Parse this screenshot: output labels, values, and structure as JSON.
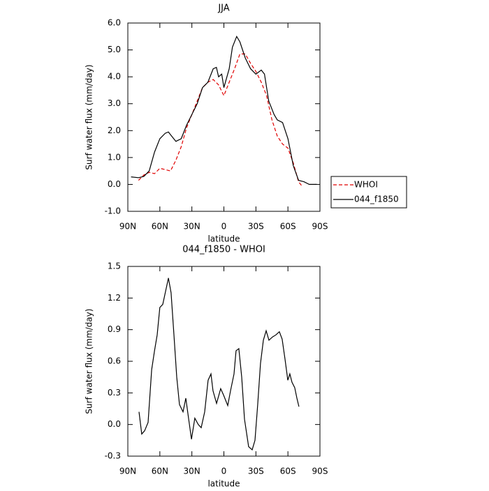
{
  "chart_data": [
    {
      "type": "line",
      "title": "JJA",
      "xlabel": "latitude",
      "ylabel": "Surf water flux (mm/day)",
      "xlim": [
        90,
        -90
      ],
      "xticks": [
        {
          "value": 90,
          "label": "90N"
        },
        {
          "value": 60,
          "label": "60N"
        },
        {
          "value": 30,
          "label": "30N"
        },
        0,
        {
          "value": -30,
          "label": "30S"
        },
        {
          "value": -60,
          "label": "60S"
        },
        {
          "value": -90,
          "label": "90S"
        }
      ],
      "ylim": [
        -1,
        6
      ],
      "yticks": [
        {
          "value": -1,
          "label": "-1.0"
        },
        {
          "value": 0,
          "label": "0.0"
        },
        {
          "value": 1,
          "label": "1.0"
        },
        {
          "value": 2,
          "label": "2.0"
        },
        {
          "value": 3,
          "label": "3.0"
        },
        {
          "value": 4,
          "label": "4.0"
        },
        {
          "value": 5,
          "label": "5.0"
        },
        {
          "value": 6,
          "label": "6.0"
        }
      ],
      "legend": "right",
      "series": [
        {
          "name": "WHOI",
          "color": "#e00000",
          "dashed": true,
          "x": [
            80,
            75,
            70,
            65,
            60,
            55,
            50,
            45,
            40,
            35,
            30,
            25,
            20,
            15,
            10,
            5,
            0,
            -5,
            -10,
            -15,
            -20,
            -25,
            -30,
            -35,
            -40,
            -45,
            -50,
            -55,
            -60,
            -65,
            -70,
            -73
          ],
          "values": [
            0.15,
            0.35,
            0.45,
            0.4,
            0.6,
            0.55,
            0.5,
            0.9,
            1.4,
            2.1,
            2.6,
            3.1,
            3.6,
            3.8,
            3.9,
            3.7,
            3.3,
            3.8,
            4.3,
            4.85,
            4.85,
            4.5,
            4.2,
            3.8,
            3.3,
            2.4,
            1.8,
            1.5,
            1.35,
            0.8,
            0.1,
            -0.05
          ]
        },
        {
          "name": "044_f1850",
          "color": "#000000",
          "dashed": false,
          "x": [
            87,
            80,
            75,
            70,
            65,
            60,
            55,
            52,
            50,
            45,
            40,
            35,
            30,
            25,
            20,
            15,
            10,
            7,
            5,
            2,
            0,
            -5,
            -8,
            -12,
            -15,
            -20,
            -25,
            -30,
            -35,
            -38,
            -42,
            -47,
            -50,
            -55,
            -60,
            -65,
            -70,
            -75,
            -80,
            -87
          ],
          "values": [
            0.28,
            0.25,
            0.3,
            0.5,
            1.2,
            1.7,
            1.9,
            1.95,
            1.85,
            1.6,
            1.7,
            2.2,
            2.6,
            3.0,
            3.6,
            3.8,
            4.3,
            4.35,
            4.0,
            4.1,
            3.6,
            4.3,
            5.1,
            5.5,
            5.3,
            4.7,
            4.3,
            4.1,
            4.25,
            4.1,
            3.1,
            2.6,
            2.4,
            2.3,
            1.7,
            0.7,
            0.15,
            0.1,
            0.0,
            0.0
          ]
        }
      ]
    },
    {
      "type": "line",
      "title": "044_f1850 - WHOI",
      "xlabel": "latitude",
      "ylabel": "Surf water flux (mm/day)",
      "xlim": [
        90,
        -90
      ],
      "xticks": [
        {
          "value": 90,
          "label": "90N"
        },
        {
          "value": 60,
          "label": "60N"
        },
        {
          "value": 30,
          "label": "30N"
        },
        0,
        {
          "value": -30,
          "label": "30S"
        },
        {
          "value": -60,
          "label": "60S"
        },
        {
          "value": -90,
          "label": "90S"
        }
      ],
      "ylim": [
        -0.3,
        1.5
      ],
      "yticks": [
        -0.3,
        {
          "value": 0,
          "label": "0.0"
        },
        0.3,
        0.6,
        0.9,
        1.2,
        1.5
      ],
      "series": [
        {
          "color": "#000000",
          "dashed": false,
          "x": [
            79.5,
            77,
            74.3,
            71,
            67.7,
            65,
            62.5,
            60,
            57.3,
            54.7,
            52,
            49.5,
            46.8,
            44.2,
            41.6,
            38.3,
            35.7,
            33,
            30.4,
            27.2,
            24,
            21.3,
            18,
            14.8,
            12.1,
            10.2,
            6.9,
            3,
            0.3,
            -3.6,
            -6.2,
            -9.5,
            -11.4,
            -14,
            -16.7,
            -19.3,
            -23.2,
            -26.5,
            -29.1,
            -31.7,
            -34.3,
            -37,
            -39.6,
            -42.2,
            -45.5,
            -48.7,
            -52,
            -54.6,
            -57.3,
            -59.9,
            -61.8,
            -63.8,
            -66.4,
            -68.4,
            -70.3
          ],
          "values": [
            0.12,
            -0.09,
            -0.06,
            0.02,
            0.52,
            0.7,
            0.85,
            1.11,
            1.14,
            1.26,
            1.39,
            1.25,
            0.85,
            0.45,
            0.19,
            0.12,
            0.25,
            0.05,
            -0.14,
            0.06,
            0.0,
            -0.03,
            0.12,
            0.42,
            0.48,
            0.32,
            0.2,
            0.34,
            0.28,
            0.18,
            0.32,
            0.48,
            0.7,
            0.72,
            0.45,
            0.05,
            -0.21,
            -0.24,
            -0.15,
            0.19,
            0.58,
            0.8,
            0.89,
            0.8,
            0.83,
            0.85,
            0.88,
            0.81,
            0.62,
            0.42,
            0.48,
            0.4,
            0.35,
            0.25,
            0.17
          ]
        }
      ]
    }
  ]
}
